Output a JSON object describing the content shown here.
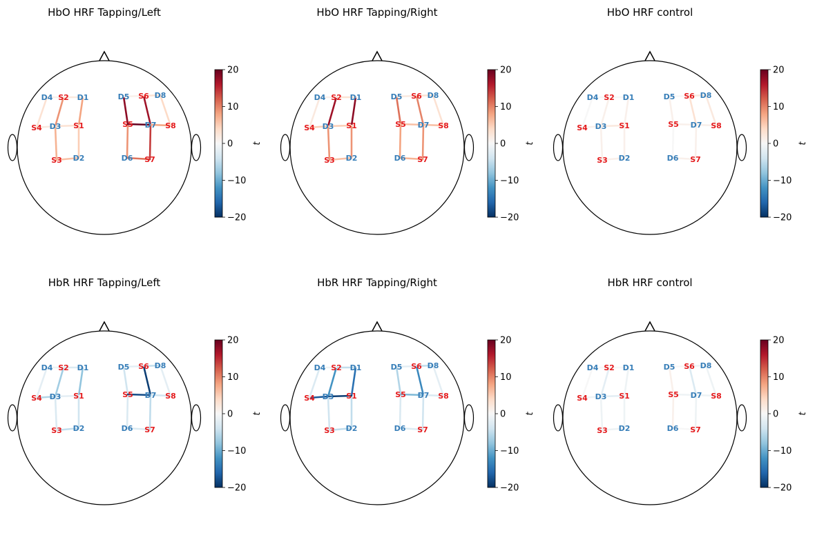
{
  "colors": {
    "source": "#e41a1c",
    "detector": "#377eb8",
    "head_outline": "#000000"
  },
  "colorbar": {
    "label": "t",
    "ticks": [
      20,
      10,
      0,
      -10,
      -20
    ],
    "tick_labels": [
      "20",
      "10",
      "0",
      "−10",
      "−20"
    ],
    "range": [
      -20,
      20
    ],
    "colormap": "RdBu_r"
  },
  "optodes": [
    {
      "name": "S1",
      "type": "source"
    },
    {
      "name": "S2",
      "type": "source"
    },
    {
      "name": "S3",
      "type": "source"
    },
    {
      "name": "S4",
      "type": "source"
    },
    {
      "name": "S5",
      "type": "source"
    },
    {
      "name": "S6",
      "type": "source"
    },
    {
      "name": "S7",
      "type": "source"
    },
    {
      "name": "S8",
      "type": "source"
    },
    {
      "name": "D1",
      "type": "detector"
    },
    {
      "name": "D2",
      "type": "detector"
    },
    {
      "name": "D3",
      "type": "detector"
    },
    {
      "name": "D4",
      "type": "detector"
    },
    {
      "name": "D5",
      "type": "detector"
    },
    {
      "name": "D6",
      "type": "detector"
    },
    {
      "name": "D7",
      "type": "detector"
    },
    {
      "name": "D8",
      "type": "detector"
    }
  ],
  "channels": [
    [
      "S1",
      "D1"
    ],
    [
      "S1",
      "D2"
    ],
    [
      "S1",
      "D3"
    ],
    [
      "S2",
      "D1"
    ],
    [
      "S2",
      "D3"
    ],
    [
      "S2",
      "D4"
    ],
    [
      "S3",
      "D2"
    ],
    [
      "S3",
      "D3"
    ],
    [
      "S4",
      "D3"
    ],
    [
      "S4",
      "D4"
    ],
    [
      "S5",
      "D5"
    ],
    [
      "S5",
      "D6"
    ],
    [
      "S5",
      "D7"
    ],
    [
      "S6",
      "D5"
    ],
    [
      "S6",
      "D7"
    ],
    [
      "S6",
      "D8"
    ],
    [
      "S7",
      "D6"
    ],
    [
      "S7",
      "D7"
    ],
    [
      "S8",
      "D7"
    ],
    [
      "S8",
      "D8"
    ]
  ],
  "panels": [
    {
      "title": "HbO HRF Tapping/Left",
      "values": [
        8,
        5,
        3,
        2,
        9,
        1,
        6,
        7,
        2,
        3,
        18,
        9,
        20,
        1,
        17,
        3,
        11,
        14,
        8,
        4
      ]
    },
    {
      "title": "HbO HRF Tapping/Right",
      "values": [
        18,
        9,
        5,
        3,
        17,
        1,
        6,
        9,
        5,
        2,
        11,
        8,
        6,
        2,
        10,
        3,
        7,
        9,
        6,
        3
      ]
    },
    {
      "title": "HbO HRF control",
      "values": [
        1,
        1,
        2,
        0,
        1,
        0,
        1,
        1,
        1,
        0,
        1,
        0,
        1,
        0,
        3,
        2,
        1,
        1,
        1,
        2
      ]
    },
    {
      "title": "HbR HRF Tapping/Left",
      "values": [
        -8,
        -4,
        -2,
        -3,
        -7,
        -1,
        -5,
        -3,
        -6,
        -2,
        -4,
        -3,
        -18,
        -2,
        -19,
        -5,
        -3,
        -5,
        -4,
        -2
      ]
    },
    {
      "title": "HbR HRF Tapping/Right",
      "values": [
        -15,
        -5,
        -19,
        -5,
        -12,
        -1,
        -5,
        -4,
        -17,
        -3,
        -6,
        -3,
        -9,
        -2,
        -13,
        -5,
        -3,
        -4,
        -3,
        -2
      ]
    },
    {
      "title": "HbR HRF control",
      "values": [
        -1,
        -1,
        -2,
        0,
        -2,
        0,
        -1,
        -1,
        -1,
        0,
        1,
        1,
        -1,
        0,
        -3,
        -1,
        0,
        -1,
        -1,
        -1
      ]
    }
  ]
}
